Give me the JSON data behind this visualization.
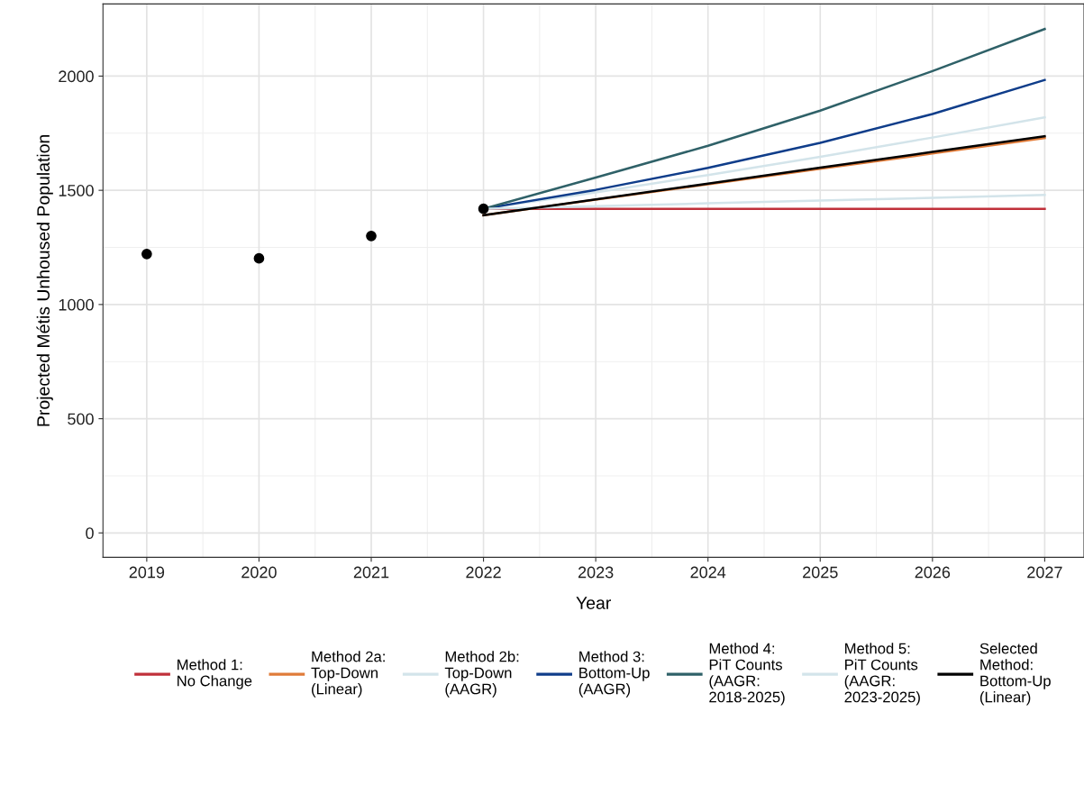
{
  "chart_data": {
    "type": "line",
    "xlabel": "Year",
    "ylabel": "Projected Métis Unhoused Population",
    "xlim": [
      2018.61,
      2027.35
    ],
    "ylim": [
      -107,
      2316
    ],
    "xticks": [
      2019,
      2020,
      2021,
      2022,
      2023,
      2024,
      2025,
      2026,
      2027
    ],
    "yticks": [
      0,
      500,
      1000,
      1500,
      2000
    ],
    "grid": true,
    "legend": "bottom",
    "line_style": "solid",
    "series": [
      {
        "type": "scatter",
        "color": "#000000",
        "marker": "circle",
        "x": [
          2019,
          2020,
          2021,
          2022
        ],
        "values": [
          1221,
          1202,
          1300,
          1419
        ]
      },
      {
        "name": "Method 1:\nNo Change",
        "color": "#c0303a",
        "x": [
          2022,
          2023,
          2024,
          2025,
          2026,
          2027
        ],
        "values": [
          1419,
          1419,
          1419,
          1419,
          1419,
          1419
        ]
      },
      {
        "name": "Method 2a:\nTop-Down\n(Linear)",
        "color": "#e07b39",
        "x": [
          2022,
          2023,
          2024,
          2025,
          2026,
          2027
        ],
        "values": [
          1391,
          1459,
          1526,
          1594,
          1661,
          1729
        ]
      },
      {
        "name": "Method 2b:\nTop-Down\n(AAGR)",
        "color": "#d3e4ea",
        "x": [
          2022,
          2023,
          2024,
          2025,
          2026,
          2027
        ],
        "values": [
          1419,
          1491,
          1567,
          1647,
          1731,
          1819
        ]
      },
      {
        "name": "Method 3:\nBottom-Up\n(AAGR)",
        "color": "#0f3d8a",
        "x": [
          2022,
          2023,
          2024,
          2025,
          2026,
          2027
        ],
        "values": [
          1419,
          1502,
          1598,
          1708,
          1834,
          1983
        ]
      },
      {
        "name": "Method 4:\nPiT Counts\n(AAGR:\n2018-2025)",
        "color": "#2f6168",
        "x": [
          2022,
          2023,
          2024,
          2025,
          2026,
          2027
        ],
        "values": [
          1419,
          1556,
          1695,
          1849,
          2022,
          2206
        ]
      },
      {
        "name": "Method 5:\nPiT Counts\n(AAGR:\n2023-2025)",
        "color": "#d3e4ea",
        "x": [
          2022,
          2023,
          2024,
          2025,
          2026,
          2027
        ],
        "values": [
          1419,
          1431,
          1443,
          1455,
          1467,
          1480
        ]
      },
      {
        "name": "Selected\nMethod:\nBottom-Up\n(Linear)",
        "color": "#000000",
        "x": [
          2022,
          2023,
          2024,
          2025,
          2026,
          2027
        ],
        "values": [
          1391,
          1460,
          1529,
          1599,
          1668,
          1737
        ]
      }
    ]
  }
}
